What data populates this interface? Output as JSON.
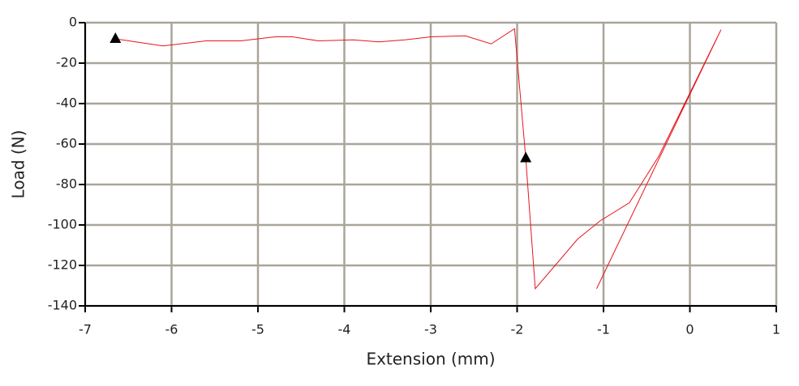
{
  "chart_data": {
    "type": "line",
    "xlabel": "Extension (mm)",
    "ylabel": "Load (N)",
    "series": [
      {
        "color": "#e8141c",
        "x": [
          -6.65,
          -6.1,
          -5.6,
          -5.2,
          -4.8,
          -4.6,
          -4.3,
          -3.9,
          -3.6,
          -3.3,
          -3.0,
          -2.6,
          -2.3,
          -2.03,
          -1.9,
          -1.79,
          -1.3,
          -1.04,
          -0.7,
          -0.36,
          0.36,
          -1.08
        ],
        "values": [
          -8,
          -11.5,
          -9,
          -9,
          -7,
          -7,
          -9,
          -8.5,
          -9.5,
          -8.5,
          -7,
          -6.5,
          -10.5,
          -3,
          -67,
          -131.5,
          -107,
          -98,
          -89,
          -66,
          -3.5,
          -131.5
        ]
      }
    ],
    "markers": {
      "color": "#000000",
      "x": [
        -6.65,
        -1.9
      ],
      "values": [
        -8,
        -67
      ]
    },
    "xlim": [
      -7,
      1
    ],
    "ylim": [
      -140,
      0
    ],
    "xticks": [
      -7,
      -6,
      -5,
      -4,
      -3,
      -2,
      -1,
      0,
      1
    ],
    "yticks": [
      -140,
      -120,
      -100,
      -80,
      -60,
      -40,
      -20,
      0
    ],
    "grid": true
  }
}
